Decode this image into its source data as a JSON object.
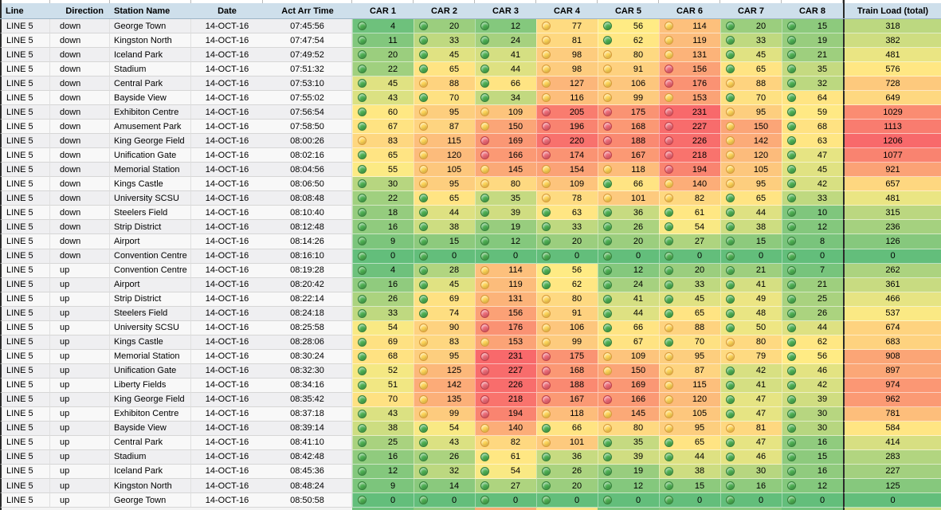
{
  "header": {
    "columns": [
      "Line",
      "Direction",
      "Station Name",
      "Date",
      "Act Arr Time",
      "CAR 1",
      "CAR 2",
      "CAR 3",
      "CAR 4",
      "CAR 5",
      "CAR 6",
      "CAR 7",
      "CAR 8",
      "Train Load (total)"
    ]
  },
  "colors": {
    "header_bg": "#CEDFEB",
    "scale_min": "#63BE7B",
    "scale_mid": "#FFEB84",
    "scale_max": "#F8696B",
    "icon_green": "#4DB052",
    "icon_green_border": "#35803A",
    "icon_yellow": "#FFD455",
    "icon_yellow_border": "#D89B3A",
    "icon_red": "#EE6A76",
    "icon_red_border": "#BF3F49"
  },
  "icon_thresholds": {
    "green_below": 75,
    "red_above": 155
  },
  "rows": [
    {
      "line": "LINE 5",
      "direction": "down",
      "station": "George Town",
      "date": "14-OCT-16",
      "time": "07:45:56",
      "cars": [
        4,
        20,
        12,
        77,
        56,
        114,
        20,
        15
      ],
      "total": 318
    },
    {
      "line": "LINE 5",
      "direction": "down",
      "station": "Kingston North",
      "date": "14-OCT-16",
      "time": "07:47:54",
      "cars": [
        11,
        33,
        24,
        81,
        62,
        119,
        33,
        19
      ],
      "total": 382
    },
    {
      "line": "LINE 5",
      "direction": "down",
      "station": "Iceland Park",
      "date": "14-OCT-16",
      "time": "07:49:52",
      "cars": [
        20,
        45,
        41,
        98,
        80,
        131,
        45,
        21
      ],
      "total": 481
    },
    {
      "line": "LINE 5",
      "direction": "down",
      "station": "Stadium",
      "date": "14-OCT-16",
      "time": "07:51:32",
      "cars": [
        22,
        65,
        44,
        98,
        91,
        156,
        65,
        35
      ],
      "total": 576
    },
    {
      "line": "LINE 5",
      "direction": "down",
      "station": "Central Park",
      "date": "14-OCT-16",
      "time": "07:53:10",
      "cars": [
        45,
        88,
        66,
        127,
        106,
        176,
        88,
        32
      ],
      "total": 728
    },
    {
      "line": "LINE 5",
      "direction": "down",
      "station": "Bayside View",
      "date": "14-OCT-16",
      "time": "07:55:02",
      "cars": [
        43,
        70,
        34,
        116,
        99,
        153,
        70,
        64
      ],
      "total": 649
    },
    {
      "line": "LINE 5",
      "direction": "down",
      "station": "Exhibiton Centre",
      "date": "14-OCT-16",
      "time": "07:56:54",
      "cars": [
        60,
        95,
        109,
        205,
        175,
        231,
        95,
        59
      ],
      "total": 1029
    },
    {
      "line": "LINE 5",
      "direction": "down",
      "station": "Amusement Park",
      "date": "14-OCT-16",
      "time": "07:58:50",
      "cars": [
        67,
        87,
        150,
        196,
        168,
        227,
        150,
        68
      ],
      "total": 1113
    },
    {
      "line": "LINE 5",
      "direction": "down",
      "station": "King George Field",
      "date": "14-OCT-16",
      "time": "08:00:26",
      "cars": [
        83,
        115,
        169,
        220,
        188,
        226,
        142,
        63
      ],
      "total": 1206
    },
    {
      "line": "LINE 5",
      "direction": "down",
      "station": "Unification Gate",
      "date": "14-OCT-16",
      "time": "08:02:16",
      "cars": [
        65,
        120,
        166,
        174,
        167,
        218,
        120,
        47
      ],
      "total": 1077
    },
    {
      "line": "LINE 5",
      "direction": "down",
      "station": "Memorial Station",
      "date": "14-OCT-16",
      "time": "08:04:56",
      "cars": [
        55,
        105,
        145,
        154,
        118,
        194,
        105,
        45
      ],
      "total": 921
    },
    {
      "line": "LINE 5",
      "direction": "down",
      "station": "Kings Castle",
      "date": "14-OCT-16",
      "time": "08:06:50",
      "cars": [
        30,
        95,
        80,
        109,
        66,
        140,
        95,
        42
      ],
      "total": 657
    },
    {
      "line": "LINE 5",
      "direction": "down",
      "station": "University SCSU",
      "date": "14-OCT-16",
      "time": "08:08:48",
      "cars": [
        22,
        65,
        35,
        78,
        101,
        82,
        65,
        33
      ],
      "total": 481
    },
    {
      "line": "LINE 5",
      "direction": "down",
      "station": "Steelers Field",
      "date": "14-OCT-16",
      "time": "08:10:40",
      "cars": [
        18,
        44,
        39,
        63,
        36,
        61,
        44,
        10
      ],
      "total": 315
    },
    {
      "line": "LINE 5",
      "direction": "down",
      "station": "Strip District",
      "date": "14-OCT-16",
      "time": "08:12:48",
      "cars": [
        16,
        38,
        19,
        33,
        26,
        54,
        38,
        12
      ],
      "total": 236
    },
    {
      "line": "LINE 5",
      "direction": "down",
      "station": "Airport",
      "date": "14-OCT-16",
      "time": "08:14:26",
      "cars": [
        9,
        15,
        12,
        20,
        20,
        27,
        15,
        8
      ],
      "total": 126
    },
    {
      "line": "LINE 5",
      "direction": "down",
      "station": "Convention Centre",
      "date": "14-OCT-16",
      "time": "08:16:10",
      "cars": [
        0,
        0,
        0,
        0,
        0,
        0,
        0,
        0
      ],
      "total": 0
    },
    {
      "line": "LINE 5",
      "direction": "up",
      "station": "Convention Centre",
      "date": "14-OCT-16",
      "time": "08:19:28",
      "cars": [
        4,
        28,
        114,
        56,
        12,
        20,
        21,
        7
      ],
      "total": 262
    },
    {
      "line": "LINE 5",
      "direction": "up",
      "station": "Airport",
      "date": "14-OCT-16",
      "time": "08:20:42",
      "cars": [
        16,
        45,
        119,
        62,
        24,
        33,
        41,
        21
      ],
      "total": 361
    },
    {
      "line": "LINE 5",
      "direction": "up",
      "station": "Strip District",
      "date": "14-OCT-16",
      "time": "08:22:14",
      "cars": [
        26,
        69,
        131,
        80,
        41,
        45,
        49,
        25
      ],
      "total": 466
    },
    {
      "line": "LINE 5",
      "direction": "up",
      "station": "Steelers Field",
      "date": "14-OCT-16",
      "time": "08:24:18",
      "cars": [
        33,
        74,
        156,
        91,
        44,
        65,
        48,
        26
      ],
      "total": 537
    },
    {
      "line": "LINE 5",
      "direction": "up",
      "station": "University SCSU",
      "date": "14-OCT-16",
      "time": "08:25:58",
      "cars": [
        54,
        90,
        176,
        106,
        66,
        88,
        50,
        44
      ],
      "total": 674
    },
    {
      "line": "LINE 5",
      "direction": "up",
      "station": "Kings Castle",
      "date": "14-OCT-16",
      "time": "08:28:06",
      "cars": [
        69,
        83,
        153,
        99,
        67,
        70,
        80,
        62
      ],
      "total": 683
    },
    {
      "line": "LINE 5",
      "direction": "up",
      "station": "Memorial Station",
      "date": "14-OCT-16",
      "time": "08:30:24",
      "cars": [
        68,
        95,
        231,
        175,
        109,
        95,
        79,
        56
      ],
      "total": 908
    },
    {
      "line": "LINE 5",
      "direction": "up",
      "station": "Unification Gate",
      "date": "14-OCT-16",
      "time": "08:32:30",
      "cars": [
        52,
        125,
        227,
        168,
        150,
        87,
        42,
        46
      ],
      "total": 897
    },
    {
      "line": "LINE 5",
      "direction": "up",
      "station": "Liberty Fields",
      "date": "14-OCT-16",
      "time": "08:34:16",
      "cars": [
        51,
        142,
        226,
        188,
        169,
        115,
        41,
        42
      ],
      "total": 974
    },
    {
      "line": "LINE 5",
      "direction": "up",
      "station": "King George Field",
      "date": "14-OCT-16",
      "time": "08:35:42",
      "cars": [
        70,
        135,
        218,
        167,
        166,
        120,
        47,
        39
      ],
      "total": 962
    },
    {
      "line": "LINE 5",
      "direction": "up",
      "station": "Exhibiton Centre",
      "date": "14-OCT-16",
      "time": "08:37:18",
      "cars": [
        43,
        99,
        194,
        118,
        145,
        105,
        47,
        30
      ],
      "total": 781
    },
    {
      "line": "LINE 5",
      "direction": "up",
      "station": "Bayside View",
      "date": "14-OCT-16",
      "time": "08:39:14",
      "cars": [
        38,
        54,
        140,
        66,
        80,
        95,
        81,
        30
      ],
      "total": 584
    },
    {
      "line": "LINE 5",
      "direction": "up",
      "station": "Central Park",
      "date": "14-OCT-16",
      "time": "08:41:10",
      "cars": [
        25,
        43,
        82,
        101,
        35,
        65,
        47,
        16
      ],
      "total": 414
    },
    {
      "line": "LINE 5",
      "direction": "up",
      "station": "Stadium",
      "date": "14-OCT-16",
      "time": "08:42:48",
      "cars": [
        16,
        26,
        61,
        36,
        39,
        44,
        46,
        15
      ],
      "total": 283
    },
    {
      "line": "LINE 5",
      "direction": "up",
      "station": "Iceland Park",
      "date": "14-OCT-16",
      "time": "08:45:36",
      "cars": [
        12,
        32,
        54,
        26,
        19,
        38,
        30,
        16
      ],
      "total": 227
    },
    {
      "line": "LINE 5",
      "direction": "up",
      "station": "Kingston North",
      "date": "14-OCT-16",
      "time": "08:48:24",
      "cars": [
        9,
        14,
        27,
        20,
        12,
        15,
        16,
        12
      ],
      "total": 125
    },
    {
      "line": "LINE 5",
      "direction": "up",
      "station": "George Town",
      "date": "14-OCT-16",
      "time": "08:50:58",
      "cars": [
        0,
        0,
        0,
        0,
        0,
        0,
        0,
        0
      ],
      "total": 0
    }
  ],
  "chart_data": {
    "type": "heatmap",
    "title": "Train Load (total) per car by station arrival",
    "x": [
      "CAR 1",
      "CAR 2",
      "CAR 3",
      "CAR 4",
      "CAR 5",
      "CAR 6",
      "CAR 7",
      "CAR 8"
    ],
    "color_scale": {
      "min": "#63BE7B",
      "mid": "#FFEB84",
      "max": "#F8696B"
    }
  }
}
